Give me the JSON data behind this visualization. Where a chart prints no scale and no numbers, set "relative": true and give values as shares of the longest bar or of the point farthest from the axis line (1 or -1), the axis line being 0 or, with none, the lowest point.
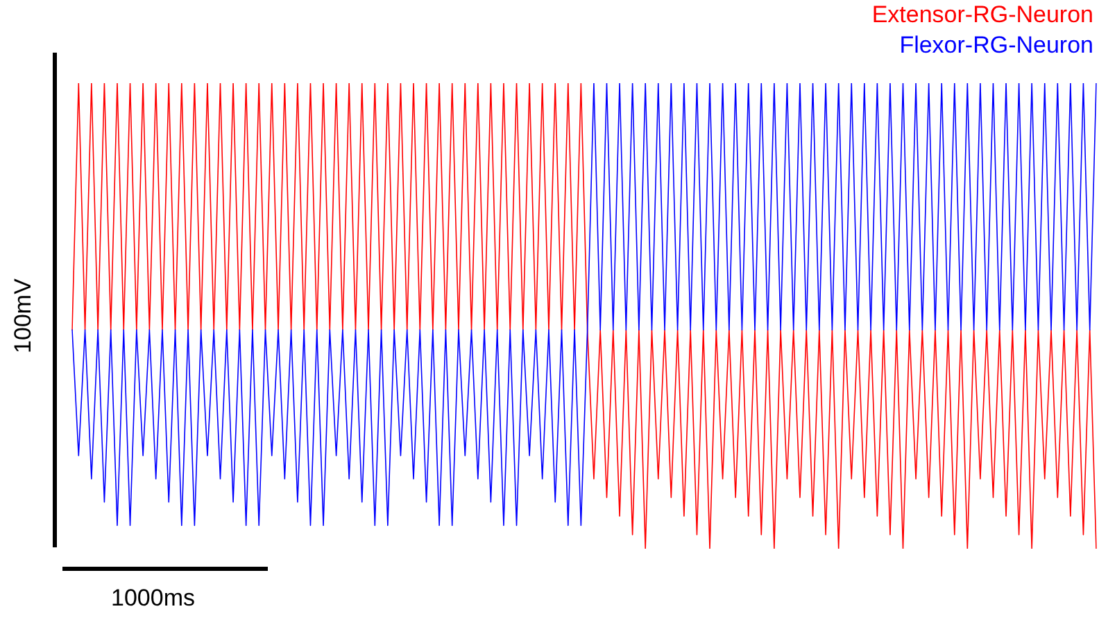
{
  "chart_data": {
    "type": "line",
    "relative": true,
    "xlabel": "1000ms",
    "ylabel": "100mV",
    "legend": "top right",
    "marker": "none",
    "categories": [
      null,
      null,
      null,
      null,
      null,
      null,
      null,
      null,
      null,
      null,
      null,
      null,
      null,
      null,
      null,
      null,
      null,
      null,
      null,
      null,
      null,
      null,
      null,
      null,
      null,
      null,
      null,
      null,
      null,
      null,
      null,
      null,
      null,
      null,
      null,
      null,
      null,
      null,
      null,
      null,
      null,
      null,
      null,
      null,
      null,
      null,
      null,
      null,
      null,
      null,
      null,
      null,
      null,
      null,
      null,
      null,
      null,
      null,
      null,
      null,
      null,
      null,
      null,
      null,
      null,
      null,
      null,
      null,
      null,
      null,
      null,
      null,
      null,
      null,
      null,
      null,
      null,
      null,
      null,
      null,
      null,
      null,
      null,
      null,
      null,
      null,
      null,
      null,
      null,
      null,
      null,
      null,
      null,
      null,
      null,
      null,
      null,
      null,
      null,
      null,
      null,
      null,
      null,
      null,
      null,
      null,
      null,
      null,
      null,
      null,
      null,
      null,
      null,
      null,
      null,
      null,
      null,
      null,
      null,
      null,
      null,
      null,
      null,
      null,
      null,
      null,
      null,
      null,
      null,
      null,
      null,
      null,
      null,
      null,
      null,
      null,
      null,
      null,
      null,
      null,
      null,
      null,
      null,
      null,
      null,
      null,
      null,
      null,
      null,
      null,
      null,
      null,
      null,
      null,
      null,
      null,
      null,
      null,
      null,
      null
    ],
    "series": [
      {
        "name": "Flexor-RG-Neuron",
        "color": "#0000ff",
        "values": [
          0.47,
          0.2,
          0.47,
          0.15,
          0.47,
          0.1,
          0.47,
          0.05,
          0.47,
          0.05,
          0.47,
          0.2,
          0.47,
          0.15,
          0.47,
          0.1,
          0.47,
          0.05,
          0.47,
          0.05,
          0.47,
          0.2,
          0.47,
          0.15,
          0.47,
          0.1,
          0.47,
          0.05,
          0.47,
          0.05,
          0.47,
          0.2,
          0.47,
          0.15,
          0.47,
          0.1,
          0.47,
          0.05,
          0.47,
          0.05,
          0.47,
          0.2,
          0.47,
          0.15,
          0.47,
          0.1,
          0.47,
          0.05,
          0.47,
          0.05,
          0.47,
          0.2,
          0.47,
          0.15,
          0.47,
          0.1,
          0.47,
          0.05,
          0.47,
          0.05,
          0.47,
          0.2,
          0.47,
          0.15,
          0.47,
          0.1,
          0.47,
          0.05,
          0.47,
          0.05,
          0.47,
          0.2,
          0.47,
          0.15,
          0.47,
          0.1,
          0.47,
          0.05,
          0.47,
          0.05,
          0.47,
          1,
          0.47,
          1,
          0.47,
          1,
          0.47,
          1,
          0.47,
          1,
          0.47,
          1,
          0.47,
          1,
          0.47,
          1,
          0.47,
          1,
          0.47,
          1,
          0.47,
          1,
          0.47,
          1,
          0.47,
          1,
          0.47,
          1,
          0.47,
          1,
          0.47,
          1,
          0.47,
          1,
          0.47,
          1,
          0.47,
          1,
          0.47,
          1,
          0.47,
          1,
          0.47,
          1,
          0.47,
          1,
          0.47,
          1,
          0.47,
          1,
          0.47,
          1,
          0.47,
          1,
          0.47,
          1,
          0.47,
          1,
          0.47,
          1,
          0.47,
          1,
          0.47,
          1,
          0.47,
          1,
          0.47,
          1,
          0.47,
          1,
          0.47,
          1,
          0.47,
          1,
          0.47,
          1,
          0.47,
          1,
          0.47,
          1
        ]
      },
      {
        "name": "Extensor-RG-Neuron",
        "color": "#ff0000",
        "values": [
          0.47,
          1,
          0.47,
          1,
          0.47,
          1,
          0.47,
          1,
          0.47,
          1,
          0.47,
          1,
          0.47,
          1,
          0.47,
          1,
          0.47,
          1,
          0.47,
          1,
          0.47,
          1,
          0.47,
          1,
          0.47,
          1,
          0.47,
          1,
          0.47,
          1,
          0.47,
          1,
          0.47,
          1,
          0.47,
          1,
          0.47,
          1,
          0.47,
          1,
          0.47,
          1,
          0.47,
          1,
          0.47,
          1,
          0.47,
          1,
          0.47,
          1,
          0.47,
          1,
          0.47,
          1,
          0.47,
          1,
          0.47,
          1,
          0.47,
          1,
          0.47,
          1,
          0.47,
          1,
          0.47,
          1,
          0.47,
          1,
          0.47,
          1,
          0.47,
          1,
          0.47,
          1,
          0.47,
          1,
          0.47,
          1,
          0.47,
          1,
          0.47,
          0.15,
          0.47,
          0.11,
          0.47,
          0.07,
          0.47,
          0.03,
          0.47,
          0,
          0.47,
          0.15,
          0.47,
          0.11,
          0.47,
          0.07,
          0.47,
          0.03,
          0.47,
          0,
          0.47,
          0.15,
          0.47,
          0.11,
          0.47,
          0.07,
          0.47,
          0.03,
          0.47,
          0,
          0.47,
          0.15,
          0.47,
          0.11,
          0.47,
          0.07,
          0.47,
          0.03,
          0.47,
          0,
          0.47,
          0.15,
          0.47,
          0.11,
          0.47,
          0.07,
          0.47,
          0.03,
          0.47,
          0,
          0.47,
          0.15,
          0.47,
          0.11,
          0.47,
          0.07,
          0.47,
          0.03,
          0.47,
          0,
          0.47,
          0.15,
          0.47,
          0.11,
          0.47,
          0.07,
          0.47,
          0.03,
          0.47,
          0,
          0.47,
          0.15,
          0.47,
          0.11,
          0.47,
          0.07,
          0.47,
          0.03,
          0.47,
          0
        ]
      }
    ]
  }
}
